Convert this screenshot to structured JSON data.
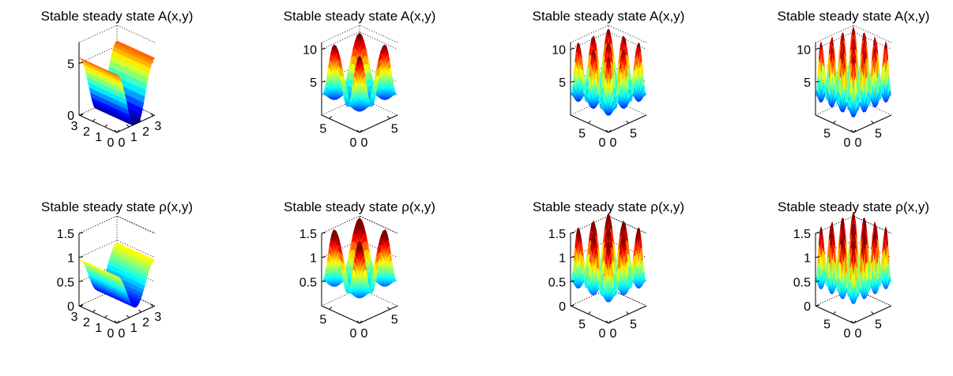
{
  "figure": {
    "colormap": "jet",
    "colormap_colors": [
      "#00008f",
      "#0000ff",
      "#00ffff",
      "#ffff00",
      "#ff0000",
      "#800000"
    ]
  },
  "chart_data": [
    {
      "type": "surface",
      "title": "Stable steady state A(x,y)",
      "pattern": "stripes",
      "xrange": [
        0,
        3.14
      ],
      "yrange": [
        0,
        3.14
      ],
      "zlim": [
        0,
        7
      ],
      "mean": 2.5,
      "amp": 3.0,
      "n": 2,
      "xticks": [
        "0",
        "1",
        "2",
        "3"
      ],
      "yticks": [
        "0",
        "1",
        "2",
        "3"
      ],
      "zticks": [
        {
          "v": 0,
          "label": "0"
        },
        {
          "v": 5,
          "label": "5"
        }
      ]
    },
    {
      "type": "surface",
      "title": "Stable steady state A(x,y)",
      "pattern": "spots",
      "xrange": [
        0,
        6.28
      ],
      "yrange": [
        0,
        6.28
      ],
      "zlim": [
        0,
        11
      ],
      "mean": 4.8,
      "amp": 5.0,
      "n": 3,
      "xticks": [
        "0",
        "5"
      ],
      "yticks": [
        "0",
        "5"
      ],
      "zticks": [
        {
          "v": 5,
          "label": "5"
        },
        {
          "v": 10,
          "label": "10"
        }
      ]
    },
    {
      "type": "surface",
      "title": "Stable steady state A(x,y)",
      "pattern": "spots",
      "xrange": [
        0,
        9.42
      ],
      "yrange": [
        0,
        9.42
      ],
      "zlim": [
        0,
        11
      ],
      "mean": 4.8,
      "amp": 5.0,
      "n": 5,
      "xticks": [
        "0",
        "5"
      ],
      "yticks": [
        "0",
        "5"
      ],
      "zticks": [
        {
          "v": 5,
          "label": "5"
        },
        {
          "v": 10,
          "label": "10"
        }
      ]
    },
    {
      "type": "surface",
      "title": "Stable steady state A(x,y)",
      "pattern": "spots",
      "xrange": [
        0,
        9.42
      ],
      "yrange": [
        0,
        9.42
      ],
      "zlim": [
        0,
        11
      ],
      "mean": 4.8,
      "amp": 5.0,
      "n": 7,
      "xticks": [
        "0",
        "5"
      ],
      "yticks": [
        "0",
        "5"
      ],
      "zticks": [
        {
          "v": 5,
          "label": "5"
        },
        {
          "v": 10,
          "label": "10"
        }
      ]
    },
    {
      "type": "surface",
      "title": "Stable steady state ρ(x,y)",
      "pattern": "stripes",
      "xrange": [
        0,
        3.14
      ],
      "yrange": [
        0,
        3.14
      ],
      "zlim": [
        0,
        1.5
      ],
      "mean": 0.55,
      "amp": 0.4,
      "n": 2,
      "xticks": [
        "0",
        "1",
        "2",
        "3"
      ],
      "yticks": [
        "0",
        "1",
        "2",
        "3"
      ],
      "zticks": [
        {
          "v": 0,
          "label": "0"
        },
        {
          "v": 0.5,
          "label": "0.5"
        },
        {
          "v": 1,
          "label": "1"
        },
        {
          "v": 1.5,
          "label": "1.5"
        }
      ]
    },
    {
      "type": "surface",
      "title": "Stable steady state ρ(x,y)",
      "pattern": "spots",
      "xrange": [
        0,
        6.28
      ],
      "yrange": [
        0,
        6.28
      ],
      "zlim": [
        0,
        1.5
      ],
      "mean": 0.75,
      "amp": 0.7,
      "n": 3,
      "xticks": [
        "0",
        "5"
      ],
      "yticks": [
        "0",
        "5"
      ],
      "zticks": [
        {
          "v": 0.5,
          "label": "0.5"
        },
        {
          "v": 1,
          "label": "1"
        },
        {
          "v": 1.5,
          "label": "1.5"
        }
      ]
    },
    {
      "type": "surface",
      "title": "Stable steady state ρ(x,y)",
      "pattern": "spots",
      "xrange": [
        0,
        9.42
      ],
      "yrange": [
        0,
        9.42
      ],
      "zlim": [
        0,
        1.5
      ],
      "mean": 0.75,
      "amp": 0.7,
      "n": 5,
      "xticks": [
        "0",
        "5"
      ],
      "yticks": [
        "0",
        "5"
      ],
      "zticks": [
        {
          "v": 0,
          "label": "0"
        },
        {
          "v": 0.5,
          "label": "0.5"
        },
        {
          "v": 1,
          "label": "1"
        },
        {
          "v": 1.5,
          "label": "1.5"
        }
      ]
    },
    {
      "type": "surface",
      "title": "Stable steady state ρ(x,y)",
      "pattern": "spots",
      "xrange": [
        0,
        9.42
      ],
      "yrange": [
        0,
        9.42
      ],
      "zlim": [
        0,
        1.5
      ],
      "mean": 0.75,
      "amp": 0.7,
      "n": 7,
      "xticks": [
        "0",
        "5"
      ],
      "yticks": [
        "0",
        "5"
      ],
      "zticks": [
        {
          "v": 0,
          "label": "0"
        },
        {
          "v": 0.5,
          "label": "0.5"
        },
        {
          "v": 1,
          "label": "1"
        },
        {
          "v": 1.5,
          "label": "1.5"
        }
      ]
    }
  ]
}
